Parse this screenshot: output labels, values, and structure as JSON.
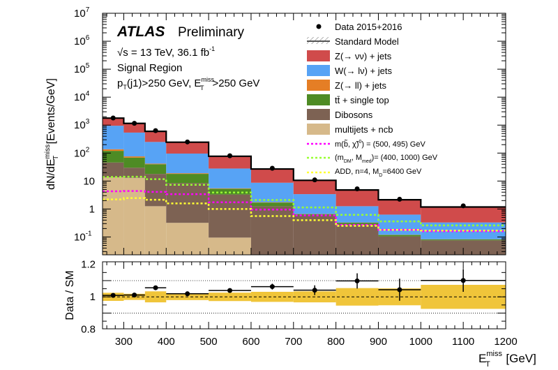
{
  "chart_data": [
    {
      "type": "bar",
      "stacked": true,
      "scale": "log",
      "title": "",
      "experiment": "ATLAS",
      "status": "Preliminary",
      "energy_label": "√s = 13 TeV, 36.1 fb",
      "energy_sup": "-1",
      "region_label": "Signal Region",
      "cut_label": {
        "p": "p",
        "p_sub": "T",
        "p_rest": "(j1)>250 GeV, E",
        "e_sup": "miss",
        "e_sub": "T",
        "e_rest": ">250 GeV"
      },
      "ylabel": {
        "main": "dN/dE",
        "sub": "T",
        "sup": "miss",
        "rest": " [Events/GeV]"
      },
      "ylim": [
        0.023,
        10000000
      ],
      "y_ticks": [
        {
          "value": 10000000,
          "base": "10",
          "exp": "7"
        },
        {
          "value": 1000000,
          "base": "10",
          "exp": "6"
        },
        {
          "value": 100000,
          "base": "10",
          "exp": "5"
        },
        {
          "value": 10000,
          "base": "10",
          "exp": "4"
        },
        {
          "value": 1000,
          "base": "10",
          "exp": "3"
        },
        {
          "value": 100,
          "base": "10",
          "exp": "2"
        },
        {
          "value": 10,
          "base": "10",
          "exp": ""
        },
        {
          "value": 1,
          "base": "1",
          "exp": ""
        },
        {
          "value": 0.1,
          "base": "10",
          "exp": "-1"
        }
      ],
      "xlim": [
        250,
        1200
      ],
      "bin_edges": [
        250,
        300,
        350,
        400,
        500,
        600,
        700,
        800,
        900,
        1000,
        1200
      ],
      "stack": [
        {
          "name": "multijets + ncb",
          "color": "#d6b98a",
          "values": [
            13.6,
            13,
            1.26,
            0.32,
            0.095,
            0,
            0,
            0,
            0,
            0
          ]
        },
        {
          "name": "Dibosons",
          "color": "#7d6253",
          "values": [
            32.4,
            17,
            16.7,
            8.2,
            3.2,
            1.26,
            0.59,
            0.29,
            0.105,
            0.076
          ]
        },
        {
          "name": "tt̄ + single top",
          "color": "#4e8b24",
          "values": [
            74,
            39,
            22,
            9.5,
            2.0,
            0.44,
            0.07,
            0.035,
            0.013,
            0.006
          ]
        },
        {
          "name": "Z(→ ll) + jets",
          "color": "#e57e25",
          "values": [
            17,
            7,
            2,
            1,
            0.2,
            0.05,
            0.01,
            0.005,
            0.002,
            0.001
          ]
        },
        {
          "name": "W(→ lν) + jets",
          "color": "#57a3f5",
          "values": [
            813,
            464,
            208,
            77,
            22.5,
            6.95,
            2.73,
            0.93,
            0.51,
            0.247
          ]
        },
        {
          "name": "Z(→ νν) + jets",
          "color": "#d04b4b",
          "values": [
            830,
            610,
            350,
            149,
            49,
            18.3,
            7.2,
            3.54,
            1.51,
            0.85
          ]
        }
      ],
      "total_sm": {
        "name": "Standard Model"
      },
      "data": {
        "name": "Data 2015+2016",
        "values": [
          1796,
          1163,
          634,
          250,
          80,
          28.7,
          11.0,
          5.27,
          2.23,
          1.3
        ]
      },
      "signals": [
        {
          "name": "m(b̃, χ̃⁰) = (500, 495) GeV",
          "label": {
            "pre": "m(b̃, χ̃)",
            "sup": "0",
            "post": ") = (500, 495) GeV"
          },
          "color": "#ff00ff",
          "values": [
            4.3,
            4.4,
            4.1,
            3.4,
            1.74,
            0.95,
            0.59,
            0.27,
            0.18,
            0.16
          ]
        },
        {
          "name": "(m_DM, M_med)= (400, 1000) GeV",
          "label": {
            "pre": "(m",
            "sub1": "DM",
            "mid": ", M",
            "sub2": "med",
            "post": ")= (400, 1000) GeV"
          },
          "color": "#99ff33",
          "values": [
            14,
            14.3,
            11.7,
            7.3,
            3.9,
            2.1,
            1.14,
            0.62,
            0.36,
            0.26
          ]
        },
        {
          "name": "ADD, n=4, M_D=6400 GeV",
          "label": {
            "pre": "ADD, n=4, M",
            "sub": "D",
            "post": "=6400 GeV"
          },
          "color": "#ffff33",
          "values": [
            2.2,
            2.45,
            2.15,
            1.58,
            1.0,
            0.56,
            0.4,
            0.25,
            0.18,
            0.17
          ]
        }
      ],
      "legend_position": "top-right"
    },
    {
      "type": "scatter",
      "ylabel": "Data / SM",
      "ylim": [
        0.803,
        1.216
      ],
      "y_ticks": [
        "1.2",
        "1",
        "0.8"
      ],
      "y_tick_values": [
        1.2,
        1.0,
        0.8
      ],
      "reference_lines": [
        0.9,
        1.0,
        1.1
      ],
      "ratio": [
        1.009,
        1.011,
        1.056,
        1.019,
        1.039,
        1.063,
        1.041,
        1.098,
        1.044,
        1.101
      ],
      "ratio_error": [
        0.006,
        0.006,
        0.008,
        0.008,
        0.012,
        0.018,
        0.03,
        0.047,
        0.068,
        0.07
      ],
      "band_uncertainty": [
        0.025,
        0.019,
        0.034,
        0.02,
        0.026,
        0.031,
        0.034,
        0.054,
        0.052,
        0.074
      ],
      "band_color": "#f0c53a",
      "x_ticks": [
        "300",
        "400",
        "500",
        "600",
        "700",
        "800",
        "900",
        "1000",
        "1100",
        "1200"
      ],
      "x_tick_values": [
        300,
        400,
        500,
        600,
        700,
        800,
        900,
        1000,
        1100,
        1200
      ],
      "xlabel": {
        "main": "E",
        "sup": "miss",
        "sub": "T",
        "rest": " [GeV]"
      }
    }
  ]
}
